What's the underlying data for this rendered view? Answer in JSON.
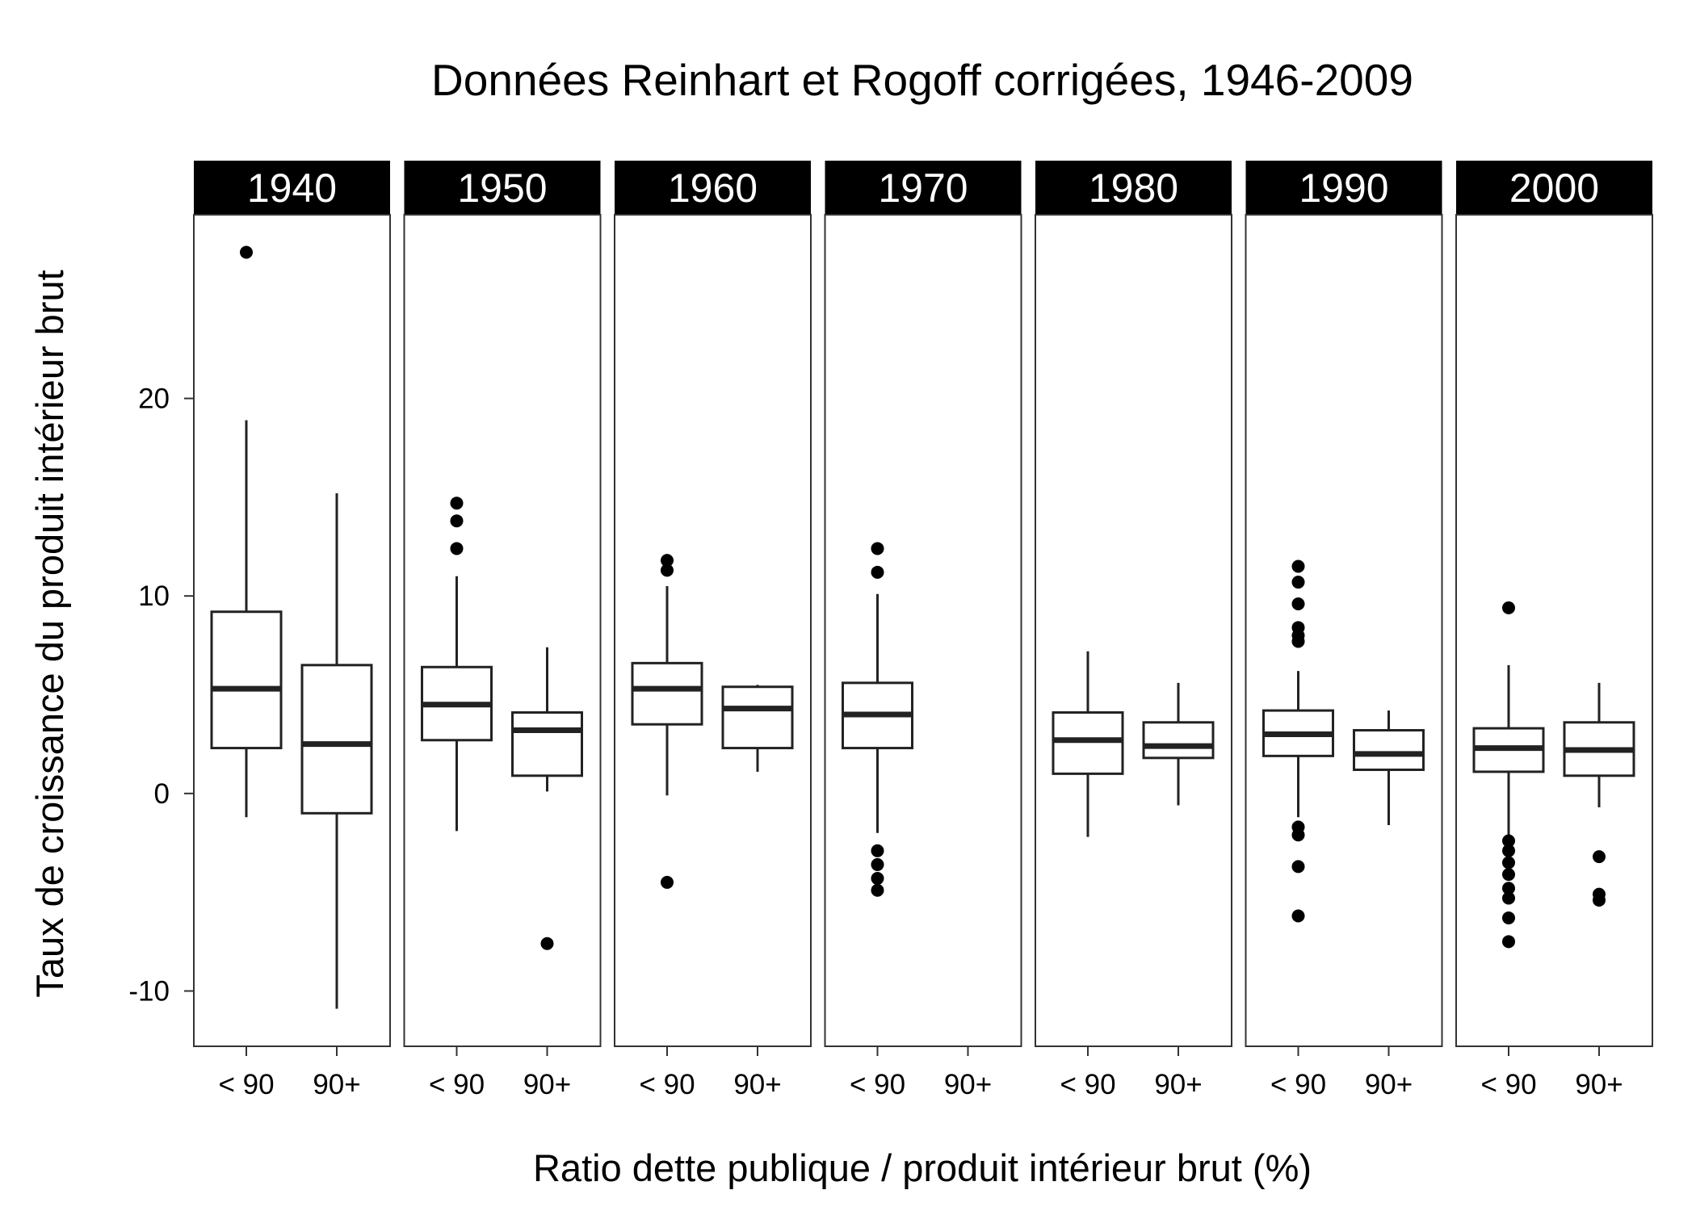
{
  "chart_data": {
    "type": "boxplot",
    "title": "Données Reinhart et Rogoff corrigées, 1946-2009",
    "xlabel": "Ratio dette publique / produit intérieur brut (%)",
    "ylabel": "Taux de croissance du produit intérieur brut",
    "y_ticks": [
      -10,
      0,
      10,
      20
    ],
    "ylim": [
      -12.8,
      29.3
    ],
    "categories": [
      "< 90",
      "90+"
    ],
    "facets": [
      {
        "label": "1940",
        "boxes": [
          {
            "category": "< 90",
            "lower_whisker": -1.2,
            "q1": 2.3,
            "median": 5.3,
            "q3": 9.2,
            "upper_whisker": 18.9,
            "outliers": [
              27.4
            ]
          },
          {
            "category": "90+",
            "lower_whisker": -10.9,
            "q1": -1.0,
            "median": 2.5,
            "q3": 6.5,
            "upper_whisker": 15.2,
            "outliers": []
          }
        ]
      },
      {
        "label": "1950",
        "boxes": [
          {
            "category": "< 90",
            "lower_whisker": -1.9,
            "q1": 2.7,
            "median": 4.5,
            "q3": 6.4,
            "upper_whisker": 11.0,
            "outliers": [
              12.4,
              13.8,
              14.7
            ]
          },
          {
            "category": "90+",
            "lower_whisker": 0.1,
            "q1": 0.9,
            "median": 3.2,
            "q3": 4.1,
            "upper_whisker": 7.4,
            "outliers": [
              -7.6
            ]
          }
        ]
      },
      {
        "label": "1960",
        "boxes": [
          {
            "category": "< 90",
            "lower_whisker": -0.1,
            "q1": 3.5,
            "median": 5.3,
            "q3": 6.6,
            "upper_whisker": 10.5,
            "outliers": [
              -4.5,
              11.3,
              11.8
            ]
          },
          {
            "category": "90+",
            "lower_whisker": 1.1,
            "q1": 2.3,
            "median": 4.3,
            "q3": 5.4,
            "upper_whisker": 5.5,
            "outliers": []
          }
        ]
      },
      {
        "label": "1970",
        "boxes": [
          {
            "category": "< 90",
            "lower_whisker": -2.0,
            "q1": 2.3,
            "median": 4.0,
            "q3": 5.6,
            "upper_whisker": 10.1,
            "outliers": [
              -4.9,
              -4.3,
              -3.6,
              -2.9,
              11.2,
              12.4
            ]
          }
        ]
      },
      {
        "label": "1980",
        "boxes": [
          {
            "category": "< 90",
            "lower_whisker": -2.2,
            "q1": 1.0,
            "median": 2.7,
            "q3": 4.1,
            "upper_whisker": 7.2,
            "outliers": []
          },
          {
            "category": "90+",
            "lower_whisker": -0.6,
            "q1": 1.8,
            "median": 2.4,
            "q3": 3.6,
            "upper_whisker": 5.6,
            "outliers": []
          }
        ]
      },
      {
        "label": "1990",
        "boxes": [
          {
            "category": "< 90",
            "lower_whisker": -1.2,
            "q1": 1.9,
            "median": 3.0,
            "q3": 4.2,
            "upper_whisker": 6.2,
            "outliers": [
              -6.2,
              -3.7,
              -2.1,
              -1.7,
              7.7,
              8.0,
              8.4,
              9.6,
              10.7,
              11.5
            ]
          },
          {
            "category": "90+",
            "lower_whisker": -1.6,
            "q1": 1.2,
            "median": 2.0,
            "q3": 3.2,
            "upper_whisker": 4.2,
            "outliers": []
          }
        ]
      },
      {
        "label": "2000",
        "boxes": [
          {
            "category": "< 90",
            "lower_whisker": -2.2,
            "q1": 1.1,
            "median": 2.3,
            "q3": 3.3,
            "upper_whisker": 6.5,
            "outliers": [
              -7.5,
              -6.3,
              -5.3,
              -4.8,
              -4.1,
              -3.5,
              -2.9,
              -2.4,
              9.4
            ]
          },
          {
            "category": "90+",
            "lower_whisker": -0.7,
            "q1": 0.9,
            "median": 2.2,
            "q3": 3.6,
            "upper_whisker": 5.6,
            "outliers": [
              -5.4,
              -5.1,
              -3.2
            ]
          }
        ]
      }
    ]
  }
}
